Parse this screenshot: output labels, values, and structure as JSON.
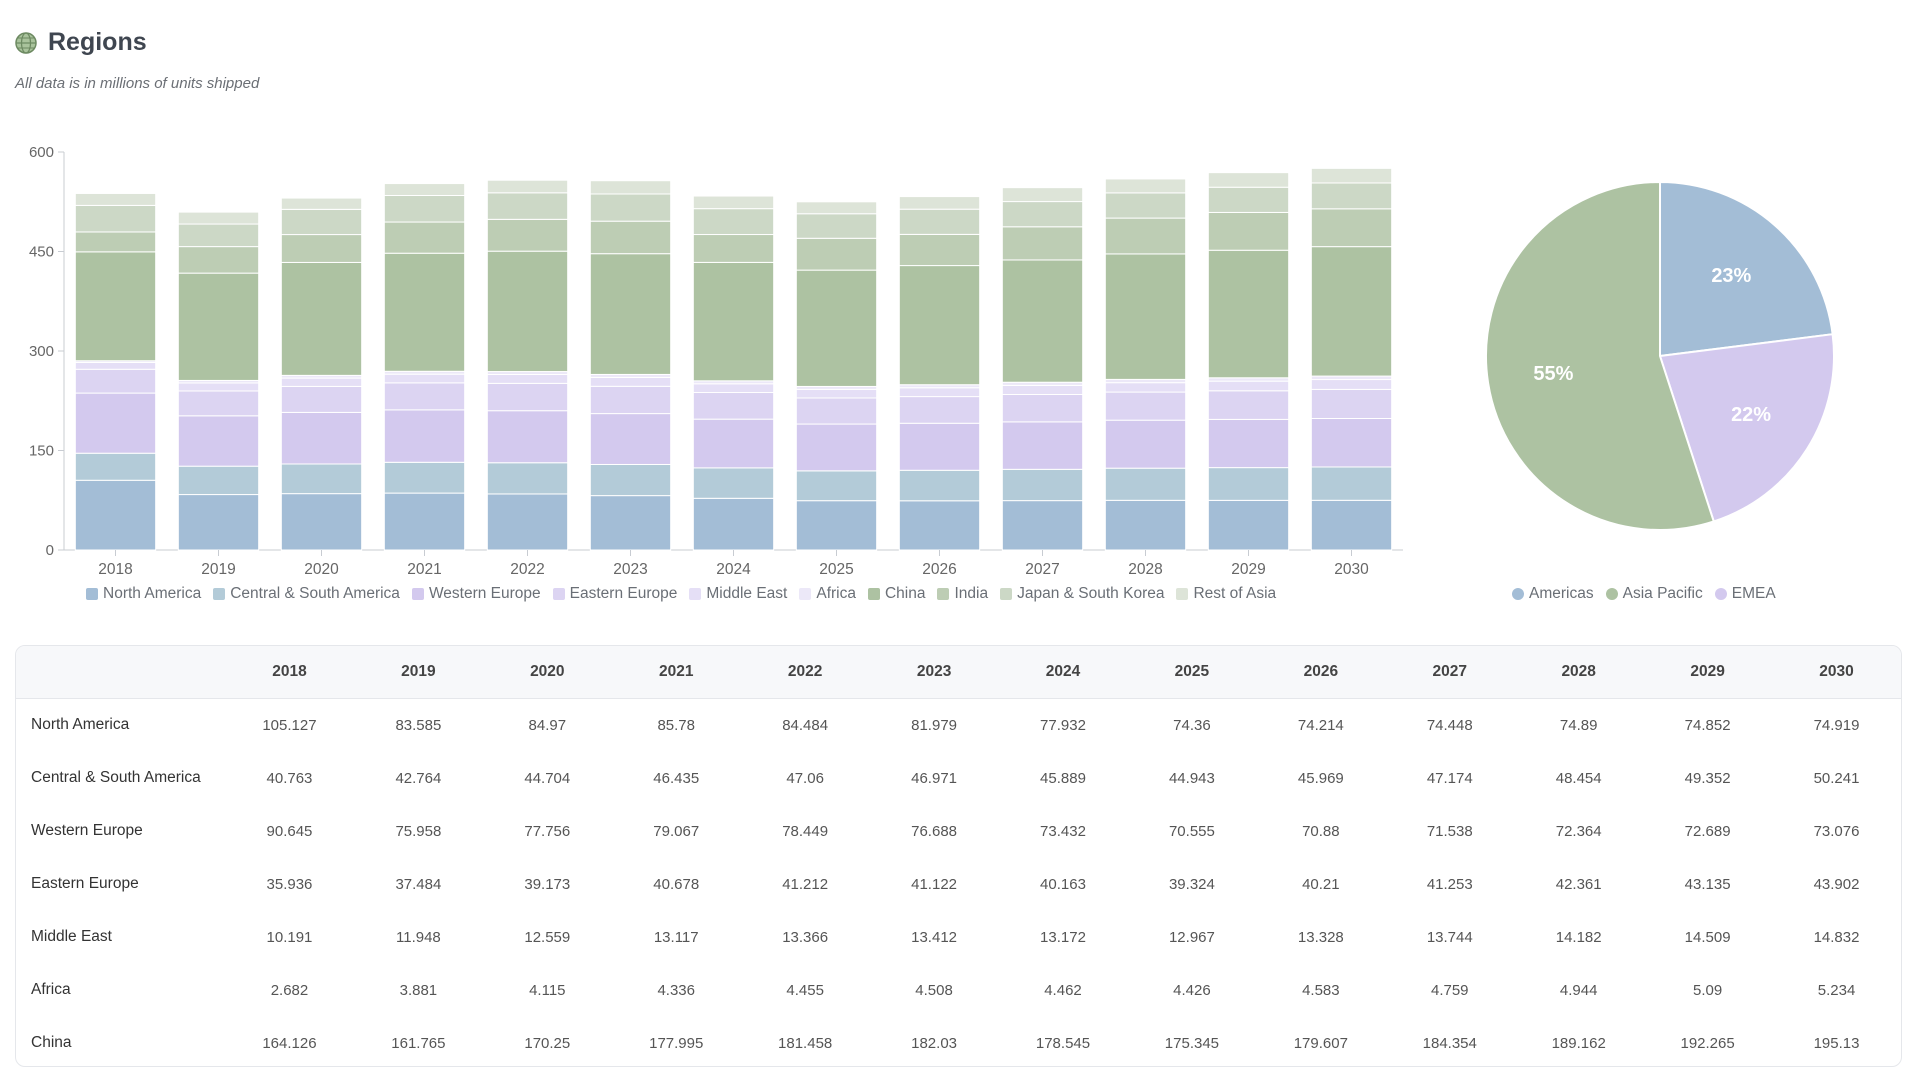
{
  "header": {
    "title": "Regions",
    "subtitle": "All data is in millions of units shipped",
    "icon": "globe-icon"
  },
  "chart_data": [
    {
      "type": "bar",
      "stacked": true,
      "categories": [
        "2018",
        "2019",
        "2020",
        "2021",
        "2022",
        "2023",
        "2024",
        "2025",
        "2026",
        "2027",
        "2028",
        "2029",
        "2030"
      ],
      "ylim": [
        0,
        600
      ],
      "yticks": [
        "0",
        "150",
        "300",
        "450",
        "600"
      ],
      "series": [
        {
          "name": "North America",
          "color": "#a3bdd6",
          "values": [
            105.127,
            83.585,
            84.97,
            85.78,
            84.484,
            81.979,
            77.932,
            74.36,
            74.214,
            74.448,
            74.89,
            74.852,
            74.919
          ]
        },
        {
          "name": "Central & South America",
          "color": "#b3cbd8",
          "values": [
            40.763,
            42.764,
            44.704,
            46.435,
            47.06,
            46.971,
            45.889,
            44.943,
            45.969,
            47.174,
            48.454,
            49.352,
            50.241
          ]
        },
        {
          "name": "Western Europe",
          "color": "#d3c9ee",
          "values": [
            90.645,
            75.958,
            77.756,
            79.067,
            78.449,
            76.688,
            73.432,
            70.555,
            70.88,
            71.538,
            72.364,
            72.689,
            73.076
          ]
        },
        {
          "name": "Eastern Europe",
          "color": "#dcd4f2",
          "values": [
            35.936,
            37.484,
            39.173,
            40.678,
            41.212,
            41.122,
            40.163,
            39.324,
            40.21,
            41.253,
            42.361,
            43.135,
            43.902
          ]
        },
        {
          "name": "Middle East",
          "color": "#e5dff6",
          "values": [
            10.191,
            11.948,
            12.559,
            13.117,
            13.366,
            13.412,
            13.172,
            12.967,
            13.328,
            13.744,
            14.182,
            14.509,
            14.832
          ]
        },
        {
          "name": "Africa",
          "color": "#ece8f8",
          "values": [
            2.682,
            3.881,
            4.115,
            4.336,
            4.455,
            4.508,
            4.462,
            4.426,
            4.583,
            4.759,
            4.944,
            5.09,
            5.234
          ]
        },
        {
          "name": "China",
          "color": "#adc2a2",
          "values": [
            164.126,
            161.765,
            170.25,
            177.995,
            181.458,
            182.03,
            178.545,
            175.345,
            179.607,
            184.354,
            189.162,
            192.265,
            195.13
          ]
        },
        {
          "name": "India",
          "color": "#bdcdb4",
          "values": [
            30,
            40,
            42,
            47,
            48,
            49,
            42,
            48,
            47,
            50,
            54,
            57,
            57
          ]
        },
        {
          "name": "Japan & South Korea",
          "color": "#ccd8c6",
          "values": [
            40,
            34,
            38,
            40,
            40,
            41,
            39,
            37,
            38,
            38,
            38,
            38,
            39
          ]
        },
        {
          "name": "Rest of Asia",
          "color": "#dde4d8",
          "values": [
            18,
            18,
            17,
            18,
            19,
            20,
            19,
            18,
            19,
            21,
            21,
            22,
            22
          ]
        }
      ]
    },
    {
      "type": "pie",
      "slices": [
        {
          "name": "Americas",
          "value": 23,
          "label": "23%",
          "color": "#a3bdd6"
        },
        {
          "name": "EMEA",
          "value": 22,
          "label": "22%",
          "color": "#d3c9ee"
        },
        {
          "name": "Asia Pacific",
          "value": 55,
          "label": "55%",
          "color": "#adc2a2"
        }
      ],
      "legend": [
        {
          "name": "Americas",
          "color": "#a3bdd6"
        },
        {
          "name": "Asia Pacific",
          "color": "#adc2a2"
        },
        {
          "name": "EMEA",
          "color": "#d3c9ee"
        }
      ]
    }
  ],
  "table": {
    "columns": [
      "2018",
      "2019",
      "2020",
      "2021",
      "2022",
      "2023",
      "2024",
      "2025",
      "2026",
      "2027",
      "2028",
      "2029",
      "2030"
    ],
    "rows": [
      {
        "label": "North America",
        "values": [
          "105.127",
          "83.585",
          "84.97",
          "85.78",
          "84.484",
          "81.979",
          "77.932",
          "74.36",
          "74.214",
          "74.448",
          "74.89",
          "74.852",
          "74.919"
        ]
      },
      {
        "label": "Central & South America",
        "values": [
          "40.763",
          "42.764",
          "44.704",
          "46.435",
          "47.06",
          "46.971",
          "45.889",
          "44.943",
          "45.969",
          "47.174",
          "48.454",
          "49.352",
          "50.241"
        ]
      },
      {
        "label": "Western Europe",
        "values": [
          "90.645",
          "75.958",
          "77.756",
          "79.067",
          "78.449",
          "76.688",
          "73.432",
          "70.555",
          "70.88",
          "71.538",
          "72.364",
          "72.689",
          "73.076"
        ]
      },
      {
        "label": "Eastern Europe",
        "values": [
          "35.936",
          "37.484",
          "39.173",
          "40.678",
          "41.212",
          "41.122",
          "40.163",
          "39.324",
          "40.21",
          "41.253",
          "42.361",
          "43.135",
          "43.902"
        ]
      },
      {
        "label": "Middle East",
        "values": [
          "10.191",
          "11.948",
          "12.559",
          "13.117",
          "13.366",
          "13.412",
          "13.172",
          "12.967",
          "13.328",
          "13.744",
          "14.182",
          "14.509",
          "14.832"
        ]
      },
      {
        "label": "Africa",
        "values": [
          "2.682",
          "3.881",
          "4.115",
          "4.336",
          "4.455",
          "4.508",
          "4.462",
          "4.426",
          "4.583",
          "4.759",
          "4.944",
          "5.09",
          "5.234"
        ]
      },
      {
        "label": "China",
        "values": [
          "164.126",
          "161.765",
          "170.25",
          "177.995",
          "181.458",
          "182.03",
          "178.545",
          "175.345",
          "179.607",
          "184.354",
          "189.162",
          "192.265",
          "195.13"
        ]
      }
    ]
  }
}
